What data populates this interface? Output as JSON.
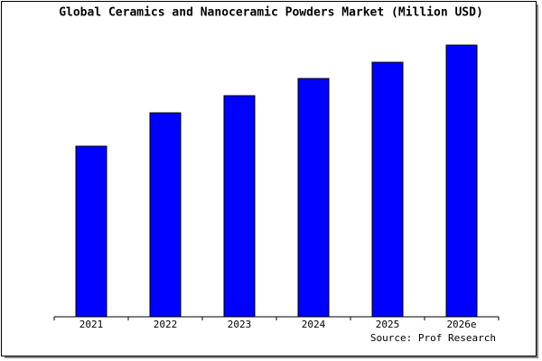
{
  "chart_data": {
    "type": "bar",
    "title": "Global Ceramics and Nanoceramic Powders Market (Million USD)",
    "categories": [
      "2021",
      "2022",
      "2023",
      "2024",
      "2025",
      "2026e"
    ],
    "values": [
      189,
      226,
      245,
      264,
      282,
      301
    ],
    "color": "#0000ff",
    "ylim": [
      0,
      306
    ],
    "source": "Source: Prof Research"
  }
}
